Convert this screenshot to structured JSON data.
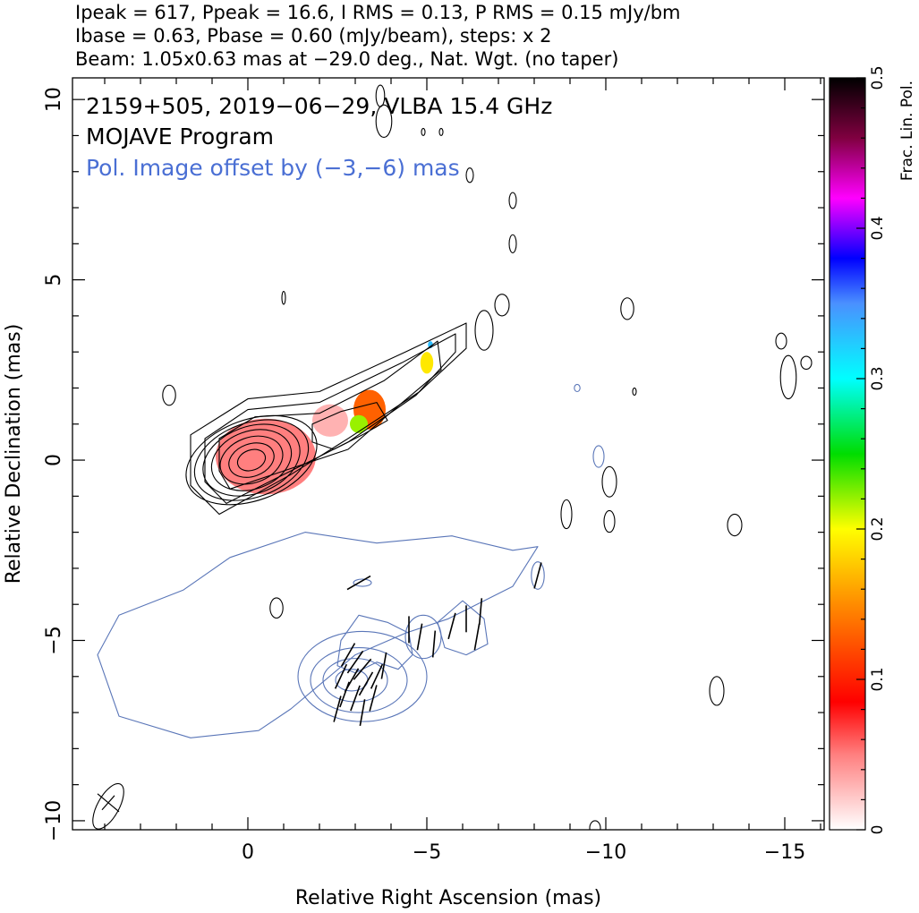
{
  "header": {
    "line1": "Ipeak = 617, Ppeak = 16.6, I RMS = 0.13, P RMS = 0.15 mJy/bm",
    "line2": "Ibase = 0.63, Pbase = 0.60 (mJy/beam), steps: x 2",
    "line3": "Beam: 1.05x0.63 mas at −29.0 deg., Nat. Wgt. (no taper)"
  },
  "annotations": {
    "source": "2159+505, 2019−06−29, VLBA 15.4 GHz",
    "program": "MOJAVE Program",
    "offset": "Pol. Image offset by (−3,−6) mas"
  },
  "colors": {
    "total_intensity_contour": "#000000",
    "polarized_contour": "#5a76b8",
    "evpa_vector": "#000000",
    "offset_text": "#4a6fd4"
  },
  "chart_data": {
    "type": "contour",
    "xlabel": "Relative Right Ascension (mas)",
    "ylabel": "Relative Declination (mas)",
    "xlim": [
      4.9,
      -16.1
    ],
    "ylim": [
      -10.25,
      10.6
    ],
    "xticks": [
      0,
      -5,
      -10,
      -15
    ],
    "xtick_labels": [
      "0",
      "−5",
      "−10",
      "−15"
    ],
    "yticks": [
      -10,
      -5,
      0,
      5,
      10
    ],
    "ytick_labels": [
      "−10",
      "−5",
      "0",
      "5",
      "10"
    ],
    "grid": false,
    "beam": {
      "major_mas": 1.05,
      "minor_mas": 0.63,
      "pa_deg": -29.0,
      "center": [
        3.9,
        -9.5
      ]
    },
    "core_contours": {
      "center": [
        -0.1,
        0.0
      ],
      "axes_mas": [
        [
          0.4,
          0.28
        ],
        [
          0.65,
          0.45
        ],
        [
          0.9,
          0.63
        ],
        [
          1.15,
          0.8
        ],
        [
          1.4,
          0.93
        ],
        [
          1.65,
          1.03
        ],
        [
          1.9,
          1.12
        ]
      ],
      "pa_deg": 20
    },
    "jet_contours": [
      [
        [
          1.6,
          0.7
        ],
        [
          0.0,
          1.7
        ],
        [
          -2.0,
          1.9
        ],
        [
          -4.4,
          3.0
        ],
        [
          -6.1,
          3.8
        ],
        [
          -6.1,
          3.1
        ],
        [
          -4.8,
          1.9
        ],
        [
          -2.8,
          0.6
        ],
        [
          -1.2,
          -0.4
        ],
        [
          0.8,
          -1.5
        ],
        [
          1.6,
          -0.7
        ]
      ],
      [
        [
          1.2,
          0.6
        ],
        [
          0.0,
          1.4
        ],
        [
          -2.0,
          1.6
        ],
        [
          -4.3,
          2.7
        ],
        [
          -5.8,
          3.5
        ],
        [
          -5.8,
          3.0
        ],
        [
          -4.7,
          1.8
        ],
        [
          -2.8,
          0.5
        ],
        [
          -1.2,
          -0.3
        ],
        [
          0.6,
          -1.2
        ],
        [
          1.2,
          -0.6
        ]
      ],
      [
        [
          0.8,
          0.6
        ],
        [
          -0.2,
          1.2
        ],
        [
          -2.0,
          1.3
        ],
        [
          -3.8,
          2.2
        ],
        [
          -5.3,
          3.3
        ],
        [
          -5.4,
          2.5
        ],
        [
          -4.2,
          1.5
        ],
        [
          -2.8,
          0.3
        ],
        [
          -1.0,
          -0.3
        ],
        [
          0.5,
          -0.8
        ],
        [
          0.8,
          -0.3
        ]
      ],
      [
        [
          -1.8,
          1.0
        ],
        [
          -2.6,
          1.35
        ],
        [
          -3.6,
          1.6
        ],
        [
          -3.9,
          1.1
        ],
        [
          -3.2,
          0.7
        ],
        [
          -2.4,
          0.3
        ],
        [
          -1.8,
          0.5
        ]
      ]
    ],
    "noise_contours_black": [
      [
        [
          2.2,
          1.8
        ],
        0.18,
        0.28
      ],
      [
        [
          -1.0,
          4.5
        ],
        0.05,
        0.18
      ],
      [
        [
          -3.8,
          9.4
        ],
        0.22,
        0.45
      ],
      [
        [
          -3.7,
          10.1
        ],
        0.12,
        0.3
      ],
      [
        [
          -4.9,
          9.1
        ],
        0.05,
        0.1
      ],
      [
        [
          -5.4,
          9.1
        ],
        0.05,
        0.1
      ],
      [
        [
          -6.2,
          7.9
        ],
        0.1,
        0.2
      ],
      [
        [
          -7.4,
          7.2
        ],
        0.1,
        0.22
      ],
      [
        [
          -7.4,
          6.0
        ],
        0.1,
        0.25
      ],
      [
        [
          -7.1,
          4.3
        ],
        0.2,
        0.3
      ],
      [
        [
          -6.6,
          3.6
        ],
        0.25,
        0.55
      ],
      [
        [
          -10.6,
          4.2
        ],
        0.18,
        0.3
      ],
      [
        [
          -14.9,
          3.3
        ],
        0.15,
        0.22
      ],
      [
        [
          -15.1,
          2.3
        ],
        0.22,
        0.6
      ],
      [
        [
          -15.6,
          2.7
        ],
        0.15,
        0.18
      ],
      [
        [
          -10.8,
          1.9
        ],
        0.05,
        0.1
      ],
      [
        [
          -10.1,
          -0.6
        ],
        0.2,
        0.42
      ],
      [
        [
          -8.9,
          -1.5
        ],
        0.15,
        0.4
      ],
      [
        [
          -10.1,
          -1.7
        ],
        0.15,
        0.3
      ],
      [
        [
          -13.6,
          -1.8
        ],
        0.2,
        0.3
      ],
      [
        [
          -13.1,
          -6.4
        ],
        0.2,
        0.4
      ],
      [
        [
          -9.7,
          -10.2
        ],
        0.15,
        0.2
      ],
      [
        [
          -0.8,
          -4.1
        ],
        0.18,
        0.28
      ]
    ],
    "beam_ellipse_contour": [
      [
        3.9,
        -9.6
      ],
      0.3,
      0.7
    ],
    "pol_contours": [
      [
        [
          4.2,
          -5.4
        ],
        [
          3.6,
          -4.3
        ],
        [
          1.8,
          -3.6
        ],
        [
          0.5,
          -2.7
        ],
        [
          -1.6,
          -2.0
        ],
        [
          -3.6,
          -2.3
        ],
        [
          -5.7,
          -2.1
        ],
        [
          -7.4,
          -2.5
        ],
        [
          -8.1,
          -2.4
        ],
        [
          -7.4,
          -3.5
        ],
        [
          -5.6,
          -4.4
        ],
        [
          -4.4,
          -4.8
        ],
        [
          -3.0,
          -5.4
        ],
        [
          -1.2,
          -6.9
        ],
        [
          -0.3,
          -7.5
        ],
        [
          1.6,
          -7.7
        ],
        [
          3.6,
          -7.1
        ],
        [
          4.2,
          -5.4
        ]
      ],
      [
        [
          -2.6,
          -5.0
        ],
        [
          -3.1,
          -4.3
        ],
        [
          -3.9,
          -4.5
        ],
        [
          -4.5,
          -4.8
        ],
        [
          -4.6,
          -5.4
        ],
        [
          -4.2,
          -5.8
        ],
        [
          -3.6,
          -5.6
        ],
        [
          -3.0,
          -5.9
        ],
        [
          -2.5,
          -5.7
        ],
        [
          -2.6,
          -5.0
        ]
      ],
      [
        [
          -5.3,
          -4.5
        ],
        [
          -6.0,
          -3.9
        ],
        [
          -6.6,
          -4.4
        ],
        [
          -6.7,
          -5.1
        ],
        [
          -6.1,
          -5.4
        ],
        [
          -5.5,
          -5.2
        ],
        [
          -5.3,
          -4.5
        ]
      ]
    ],
    "pol_ellipses": [
      [
        [
          -3.2,
          -6.0
        ],
        1.8,
        1.25
      ],
      [
        [
          -3.1,
          -6.1
        ],
        1.35,
        0.9
      ],
      [
        [
          -3.0,
          -6.1
        ],
        0.9,
        0.6
      ],
      [
        [
          -2.9,
          -6.1
        ],
        0.45,
        0.3
      ],
      [
        [
          -4.9,
          -4.9
        ],
        0.5,
        0.6
      ],
      [
        [
          -8.1,
          -3.2
        ],
        0.18,
        0.38
      ],
      [
        [
          -3.2,
          -3.4
        ],
        0.25,
        0.1
      ],
      [
        [
          -9.8,
          0.1
        ],
        0.15,
        0.3
      ],
      [
        [
          -9.2,
          2.0
        ],
        0.08,
        0.1
      ]
    ],
    "frac_pol_regions": [
      {
        "center": [
          -0.5,
          0.1
        ],
        "rx": 1.4,
        "ry": 1.05,
        "value": 0.05
      },
      {
        "center": [
          -2.3,
          1.1
        ],
        "rx": 0.5,
        "ry": 0.45,
        "value": 0.03
      },
      {
        "center": [
          -3.4,
          1.4
        ],
        "rx": 0.45,
        "ry": 0.55,
        "value": 0.13
      },
      {
        "center": [
          -3.1,
          1.0
        ],
        "rx": 0.25,
        "ry": 0.25,
        "value": 0.22
      },
      {
        "center": [
          -5.0,
          2.7
        ],
        "rx": 0.18,
        "ry": 0.3,
        "value": 0.19
      },
      {
        "center": [
          -5.1,
          3.2
        ],
        "rx": 0.07,
        "ry": 0.1,
        "value": 0.33
      }
    ],
    "evpa_vectors": [
      [
        -2.8,
        -5.4,
        30
      ],
      [
        -3.0,
        -5.6,
        35
      ],
      [
        -3.2,
        -5.8,
        40
      ],
      [
        -2.6,
        -6.0,
        25
      ],
      [
        -2.9,
        -6.1,
        30
      ],
      [
        -3.3,
        -6.2,
        30
      ],
      [
        -3.6,
        -6.0,
        25
      ],
      [
        -2.7,
        -6.5,
        20
      ],
      [
        -3.0,
        -6.6,
        20
      ],
      [
        -3.5,
        -6.6,
        15
      ],
      [
        -2.5,
        -6.9,
        15
      ],
      [
        -3.2,
        -7.0,
        10
      ],
      [
        -3.8,
        -5.7,
        10
      ],
      [
        -4.8,
        -4.9,
        10
      ],
      [
        -5.2,
        -5.1,
        5
      ],
      [
        -5.7,
        -4.6,
        15
      ],
      [
        -6.1,
        -4.4,
        0
      ],
      [
        -6.4,
        -4.9,
        10
      ],
      [
        -4.5,
        -4.7,
        0
      ],
      [
        -6.5,
        -4.2,
        5
      ],
      [
        -8.1,
        -3.2,
        15
      ],
      [
        -3.1,
        -3.4,
        60
      ]
    ],
    "colorbar": {
      "label": "Frac. Lin. Pol.",
      "range": [
        0,
        0.5
      ],
      "ticks": [
        0,
        0.1,
        0.2,
        0.3,
        0.4,
        0.5
      ],
      "tick_labels": [
        "0",
        "0.1",
        "0.2",
        "0.3",
        "0.4",
        "0.5"
      ]
    }
  }
}
